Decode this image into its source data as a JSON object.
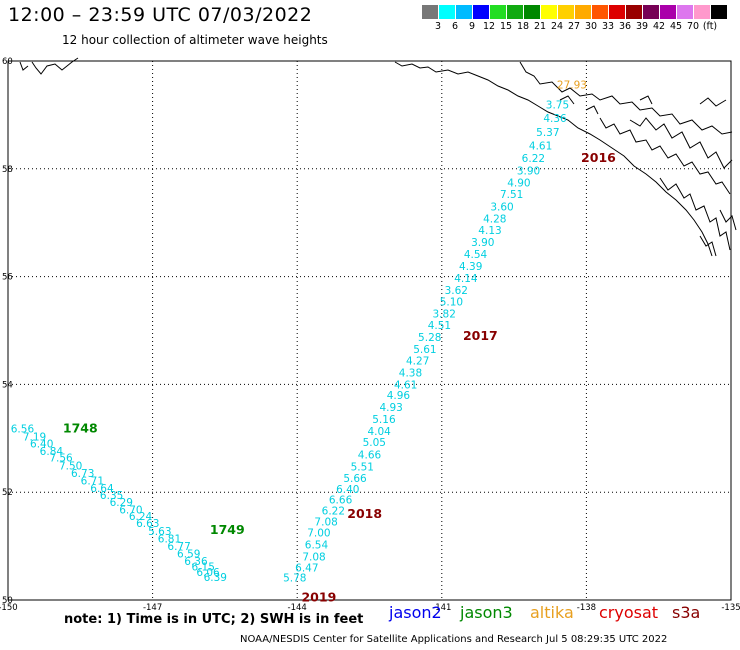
{
  "header": {
    "title": "12:00 – 23:59 UTC 07/03/2022",
    "subtitle": "12 hour collection of altimeter wave heights"
  },
  "legend": {
    "unit": "(ft)",
    "colors": [
      "#777777",
      "#00ffff",
      "#00bbff",
      "#0000ff",
      "#22dd22",
      "#11aa11",
      "#008800",
      "#ffff00",
      "#ffd000",
      "#ffaa00",
      "#ff5500",
      "#dd0000",
      "#990000",
      "#770055",
      "#aa00aa",
      "#dd77ee",
      "#ff99cc",
      "#000000"
    ],
    "labels": [
      "3",
      "6",
      "9",
      "12",
      "15",
      "18",
      "21",
      "24",
      "27",
      "30",
      "33",
      "36",
      "39",
      "42",
      "45",
      "70"
    ]
  },
  "axes": {
    "lat_labels": [
      "60",
      "58",
      "56",
      "54",
      "52",
      "50"
    ],
    "lon_labels": [
      "-150",
      "-147",
      "-144",
      "-141",
      "-138",
      "-135"
    ]
  },
  "chart_data": {
    "type": "scatter",
    "xlim": [
      -150,
      -135
    ],
    "ylim": [
      50,
      60
    ],
    "series": [
      {
        "name": "jason3",
        "color": "#00cfe0",
        "points": [
          [
            -149.7,
            53.18,
            "6.56"
          ],
          [
            -149.45,
            53.03,
            "7.19"
          ],
          [
            -149.3,
            52.9,
            "6.40"
          ],
          [
            -149.1,
            52.76,
            "6.84"
          ],
          [
            -148.9,
            52.64,
            "7.56"
          ],
          [
            -148.7,
            52.5,
            "7.50"
          ],
          [
            -148.45,
            52.36,
            "6.73"
          ],
          [
            -148.25,
            52.22,
            "6.71"
          ],
          [
            -148.05,
            52.08,
            "6.64"
          ],
          [
            -147.85,
            51.95,
            "6.35"
          ],
          [
            -147.65,
            51.82,
            "6.29"
          ],
          [
            -147.45,
            51.68,
            "6.70"
          ],
          [
            -147.25,
            51.56,
            "6.24"
          ],
          [
            -147.1,
            51.43,
            "6.63"
          ],
          [
            -146.85,
            51.28,
            "5.63"
          ],
          [
            -146.65,
            51.14,
            "6.81"
          ],
          [
            -146.45,
            51.0,
            "6.77"
          ],
          [
            -146.25,
            50.86,
            "6.59"
          ],
          [
            -146.1,
            50.72,
            "6.36"
          ],
          [
            -145.95,
            50.62,
            "6.15"
          ],
          [
            -145.85,
            50.52,
            "6.06"
          ],
          [
            -145.7,
            50.43,
            "6.39"
          ]
        ]
      },
      {
        "name": "cryosat",
        "color": "#00cfe0",
        "points": [
          [
            -144.05,
            50.42,
            "5.78"
          ],
          [
            -143.8,
            50.6,
            "6.47"
          ],
          [
            -143.65,
            50.81,
            "7.08"
          ],
          [
            -143.6,
            51.03,
            "6.54"
          ],
          [
            -143.55,
            51.25,
            "7.00"
          ],
          [
            -143.4,
            51.46,
            "7.08"
          ],
          [
            -143.25,
            51.66,
            "6.22"
          ],
          [
            -143.1,
            51.86,
            "6.66"
          ],
          [
            -142.95,
            52.06,
            "6.40"
          ],
          [
            -142.8,
            52.26,
            "5.66"
          ],
          [
            -142.65,
            52.48,
            "5.51"
          ],
          [
            -142.5,
            52.7,
            "4.66"
          ],
          [
            -142.4,
            52.93,
            "5.05"
          ],
          [
            -142.3,
            53.14,
            "4.04"
          ],
          [
            -142.2,
            53.36,
            "5.16"
          ],
          [
            -142.05,
            53.58,
            "4.93"
          ],
          [
            -141.9,
            53.8,
            "4.96"
          ],
          [
            -141.75,
            54.0,
            "4.61"
          ],
          [
            -141.65,
            54.22,
            "4.38"
          ],
          [
            -141.5,
            54.44,
            "4.27"
          ],
          [
            -141.35,
            54.66,
            "5.61"
          ],
          [
            -141.25,
            54.88,
            "5.28"
          ],
          [
            -141.05,
            55.1,
            "4.51"
          ],
          [
            -140.95,
            55.32,
            "3.82"
          ],
          [
            -140.8,
            55.54,
            "5.10"
          ],
          [
            -140.7,
            55.75,
            "3.62"
          ],
          [
            -140.5,
            55.97,
            "4.14"
          ],
          [
            -140.4,
            56.2,
            "4.39"
          ],
          [
            -140.3,
            56.42,
            "4.54"
          ],
          [
            -140.15,
            56.64,
            "3.90"
          ],
          [
            -140.0,
            56.86,
            "4.13"
          ],
          [
            -139.9,
            57.08,
            "4.28"
          ],
          [
            -139.75,
            57.3,
            "3.60"
          ],
          [
            -139.55,
            57.53,
            "7.51"
          ],
          [
            -139.4,
            57.75,
            "4.90"
          ],
          [
            -139.2,
            57.97,
            "3.90"
          ],
          [
            -139.1,
            58.2,
            "6.22"
          ],
          [
            -138.95,
            58.43,
            "4.61"
          ],
          [
            -138.8,
            58.68,
            "5.37"
          ],
          [
            -138.65,
            58.94,
            "4.36"
          ],
          [
            -138.6,
            59.19,
            "3.75"
          ]
        ]
      },
      {
        "name": "altika",
        "color": "#e8a020",
        "points": [
          [
            -138.3,
            59.56,
            "27.93"
          ]
        ]
      }
    ],
    "pass_labels": [
      {
        "text": "1748",
        "lon": -148.5,
        "lat": 53.18,
        "color": "#008800"
      },
      {
        "text": "1749",
        "lon": -145.45,
        "lat": 51.3,
        "color": "#008800"
      },
      {
        "text": "2016",
        "lon": -137.75,
        "lat": 58.2,
        "color": "#880000"
      },
      {
        "text": "2017",
        "lon": -140.2,
        "lat": 54.9,
        "color": "#880000"
      },
      {
        "text": "2018",
        "lon": -142.6,
        "lat": 51.6,
        "color": "#880000"
      },
      {
        "text": "2019",
        "lon": -143.55,
        "lat": 50.05,
        "color": "#880000"
      }
    ]
  },
  "footer": {
    "note": "note: 1) Time is in UTC; 2) SWH is in feet",
    "satellites": [
      {
        "name": "jason2",
        "color": "#0000ee"
      },
      {
        "name": "jason3",
        "color": "#008800"
      },
      {
        "name": "altika",
        "color": "#e8a020"
      },
      {
        "name": "cryosat",
        "color": "#dd0000"
      },
      {
        "name": "s3a",
        "color": "#880000"
      }
    ],
    "credit": "NOAA/NESDIS Center for Satellite Applications and Research   Jul  5 08:29:35 UTC 2022"
  }
}
